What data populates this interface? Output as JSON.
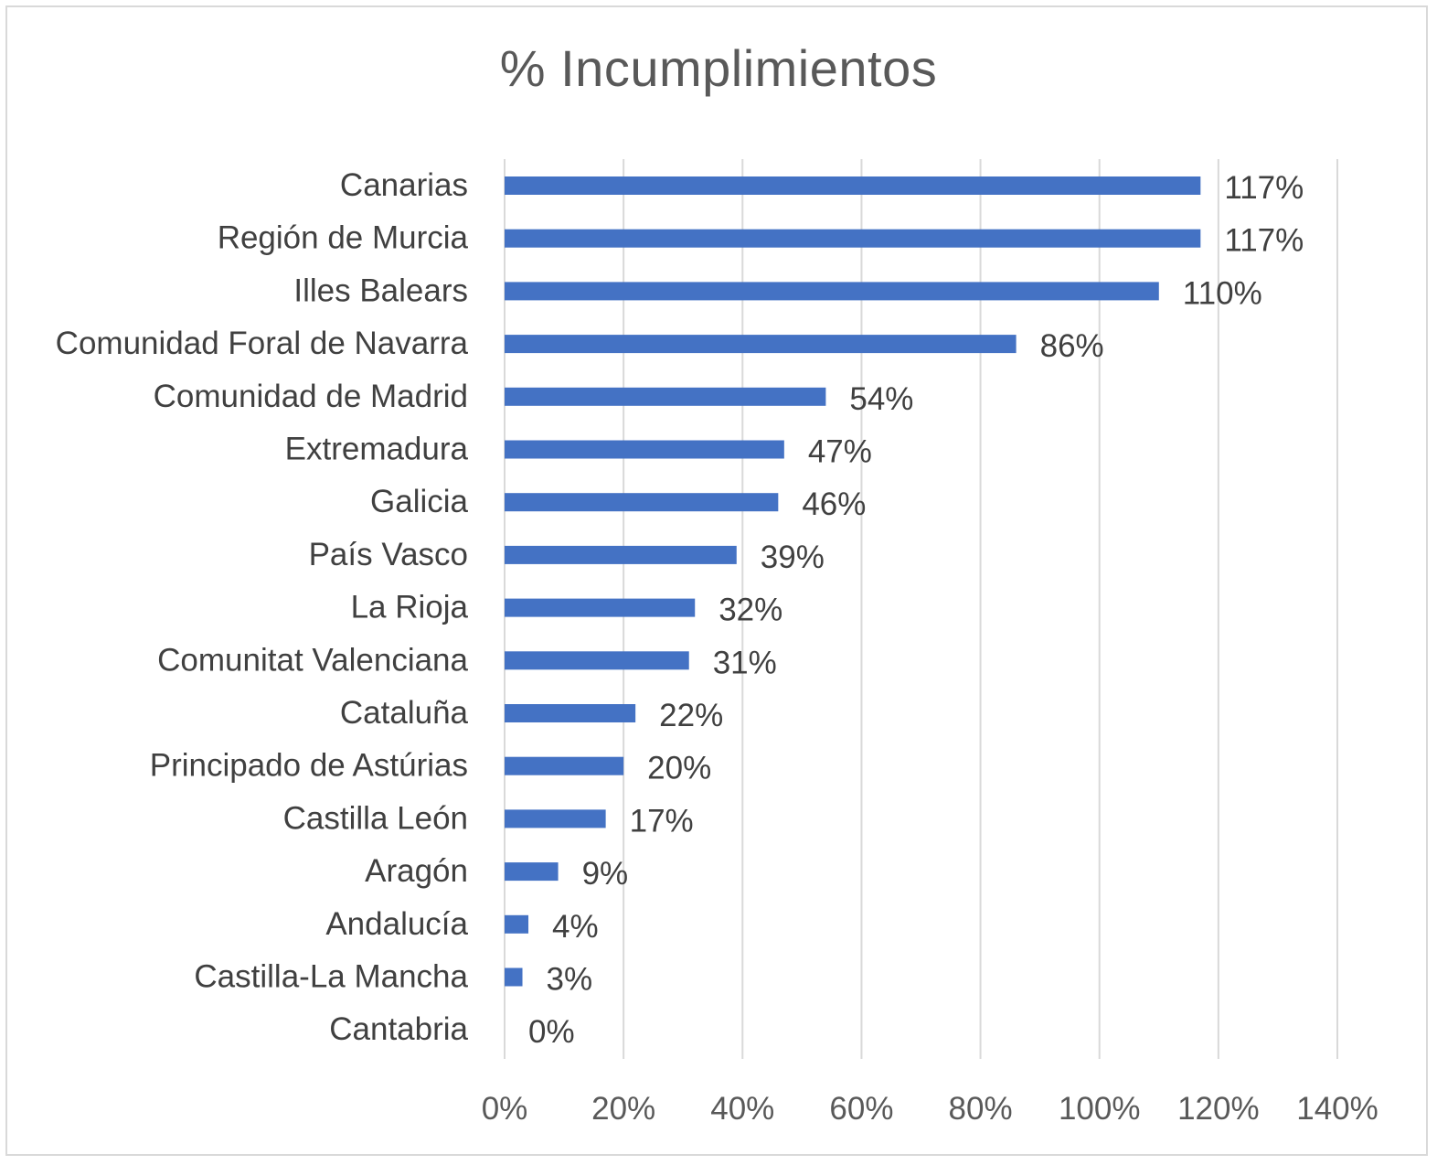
{
  "chart_data": {
    "type": "bar",
    "orientation": "horizontal",
    "title": "% Incumplimientos",
    "xlabel": "",
    "ylabel": "",
    "categories": [
      "Canarias",
      "Región de Murcia",
      "Illes Balears",
      "Comunidad Foral de Navarra",
      "Comunidad de Madrid",
      "Extremadura",
      "Galicia",
      "País Vasco",
      "La Rioja",
      "Comunitat Valenciana",
      "Cataluña",
      "Principado de Astúrias",
      "Castilla León",
      "Aragón",
      "Andalucía",
      "Castilla-La Mancha",
      "Cantabria"
    ],
    "values": [
      117,
      117,
      110,
      86,
      54,
      47,
      46,
      39,
      32,
      31,
      22,
      20,
      17,
      9,
      4,
      3,
      0
    ],
    "data_labels": [
      "117%",
      "117%",
      "110%",
      "86%",
      "54%",
      "47%",
      "46%",
      "39%",
      "32%",
      "31%",
      "22%",
      "20%",
      "17%",
      "9%",
      "4%",
      "3%",
      "0%"
    ],
    "xlim": [
      0,
      140
    ],
    "x_ticks": [
      0,
      20,
      40,
      60,
      80,
      100,
      120,
      140
    ],
    "x_tick_labels": [
      "0%",
      "20%",
      "40%",
      "60%",
      "80%",
      "100%",
      "120%",
      "140%"
    ],
    "grid": "vertical",
    "legend": "none",
    "colors": {
      "bar": "#4472c4",
      "grid": "#d9d9d9",
      "text": "#404040",
      "title": "#595959",
      "tick": "#595959"
    }
  }
}
